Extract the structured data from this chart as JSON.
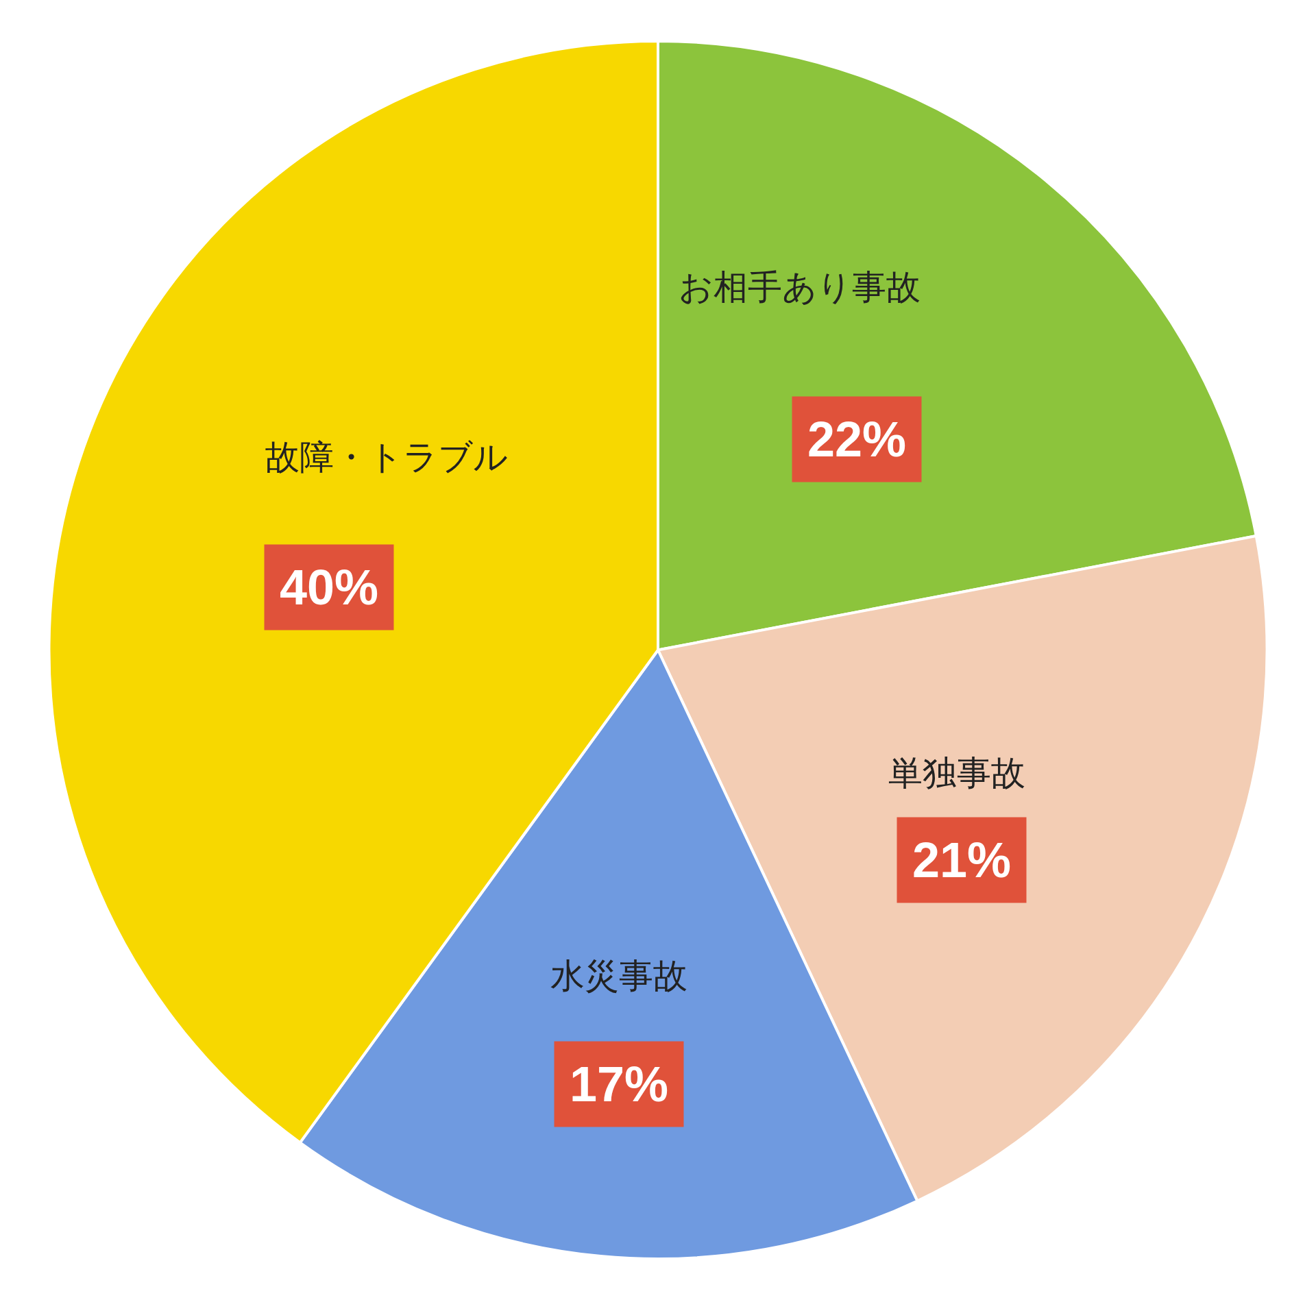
{
  "chart_data": {
    "type": "pie",
    "categories": [
      "お相手あり事故",
      "単独事故",
      "水災事故",
      "故障・トラブル"
    ],
    "values": [
      22,
      21,
      17,
      40
    ],
    "colors": [
      "#8cc43c",
      "#f3cdb4",
      "#6f9ae0",
      "#f7d800"
    ],
    "value_labels": [
      "22%",
      "21%",
      "17%",
      "40%"
    ],
    "legend": false
  }
}
